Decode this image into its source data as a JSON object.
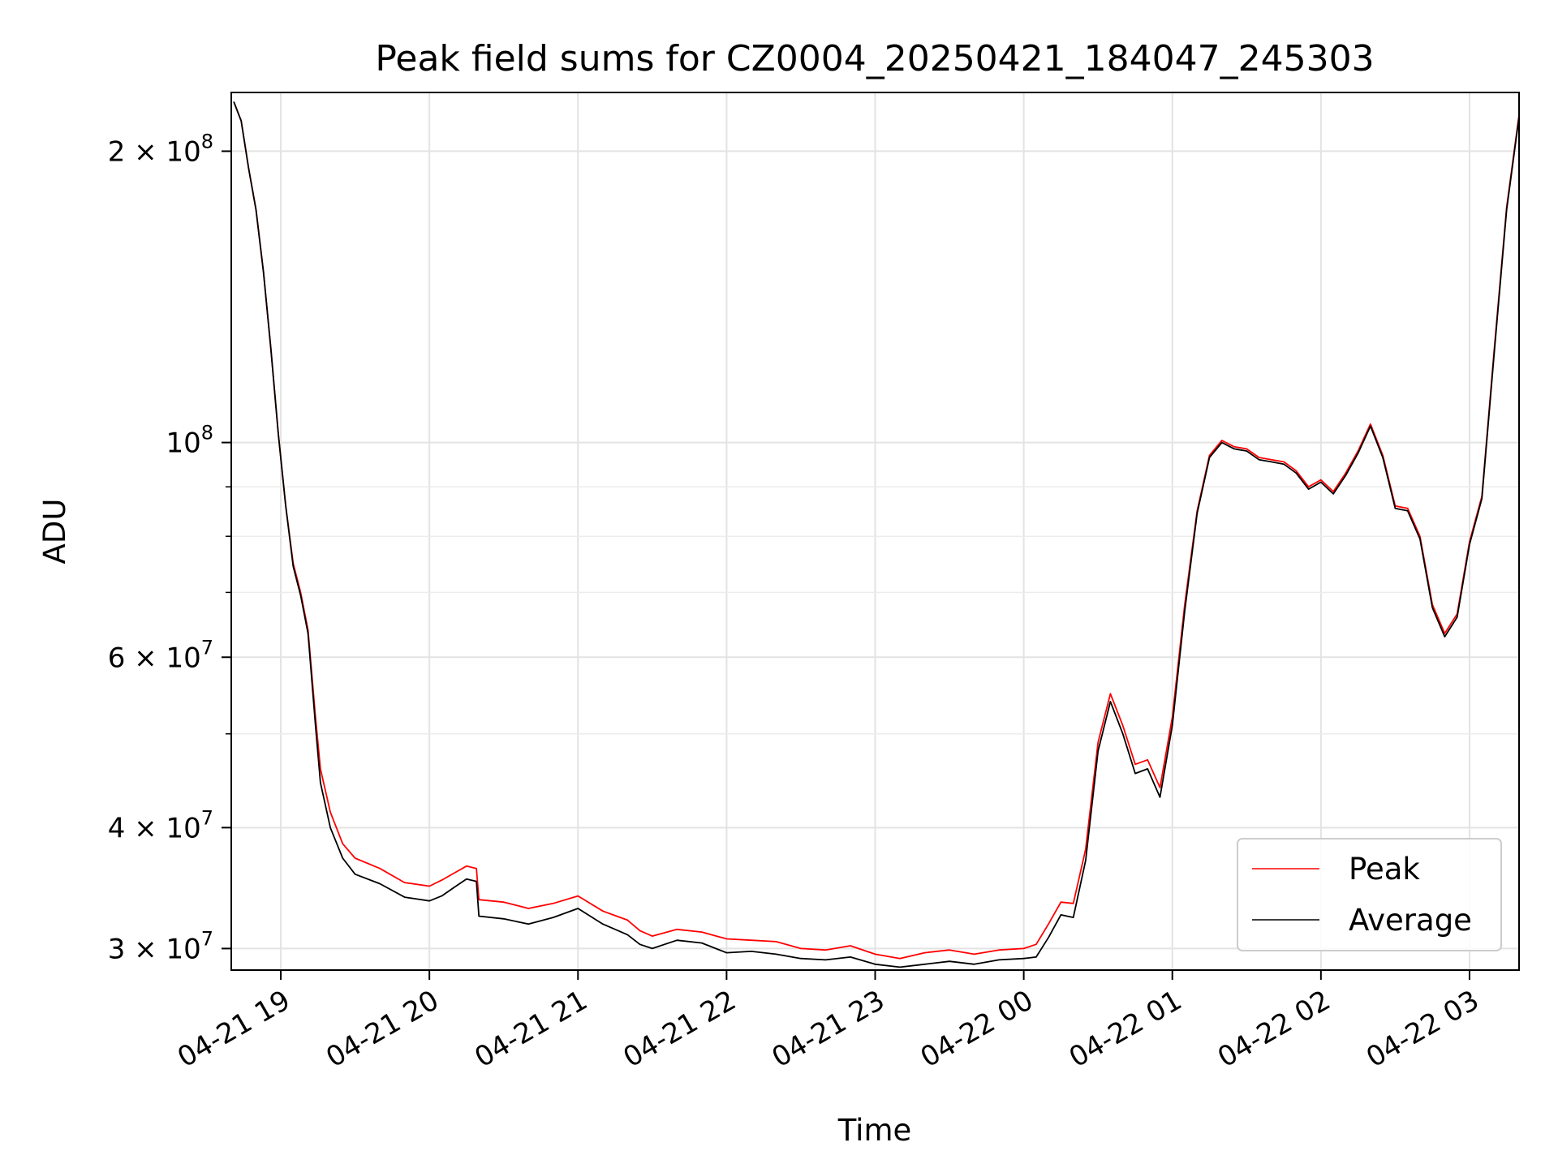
{
  "chart_data": {
    "type": "line",
    "title": "Peak field sums for CZ0004_20250421_184047_245303",
    "xlabel": "Time",
    "ylabel": "ADU",
    "yscale": "log",
    "ylim": [
      28500000,
      230000000
    ],
    "xlim": [
      "2025-04-21 18:40",
      "2025-04-22 03:20"
    ],
    "grid": true,
    "legend_position": "lower-right",
    "x_ticks": [
      {
        "t": "2025-04-21 19:00",
        "label": "04-21 19"
      },
      {
        "t": "2025-04-21 20:00",
        "label": "04-21 20"
      },
      {
        "t": "2025-04-21 21:00",
        "label": "04-21 21"
      },
      {
        "t": "2025-04-21 22:00",
        "label": "04-21 22"
      },
      {
        "t": "2025-04-21 23:00",
        "label": "04-21 23"
      },
      {
        "t": "2025-04-22 00:00",
        "label": "04-22 00"
      },
      {
        "t": "2025-04-22 01:00",
        "label": "04-22 01"
      },
      {
        "t": "2025-04-22 02:00",
        "label": "04-22 02"
      },
      {
        "t": "2025-04-22 03:00",
        "label": "04-22 03"
      }
    ],
    "y_ticks": [
      {
        "value": 30000000,
        "mantissa": "3",
        "exp": "7"
      },
      {
        "value": 40000000,
        "mantissa": "4",
        "exp": "7"
      },
      {
        "value": 60000000,
        "mantissa": "6",
        "exp": "7"
      },
      {
        "value": 100000000,
        "mantissa": "",
        "exp": "8"
      },
      {
        "value": 200000000,
        "mantissa": "2",
        "exp": "8"
      }
    ],
    "y_minor_ticks": [
      50000000,
      70000000,
      80000000,
      90000000
    ],
    "times_b": "×",
    "series": [
      {
        "name": "Peak",
        "color": "#ff0000",
        "points": [
          [
            "2025-04-21 18:41",
            225000000
          ],
          [
            "2025-04-21 18:44",
            215000000
          ],
          [
            "2025-04-21 18:47",
            192000000
          ],
          [
            "2025-04-21 18:50",
            174000000
          ],
          [
            "2025-04-21 18:53",
            150000000
          ],
          [
            "2025-04-21 18:56",
            125000000
          ],
          [
            "2025-04-21 18:59",
            102000000
          ],
          [
            "2025-04-21 19:02",
            86000000
          ],
          [
            "2025-04-21 19:05",
            75000000
          ],
          [
            "2025-04-21 19:08",
            70000000
          ],
          [
            "2025-04-21 19:11",
            64000000
          ],
          [
            "2025-04-21 19:14",
            52000000
          ],
          [
            "2025-04-21 19:16",
            46000000
          ],
          [
            "2025-04-21 19:20",
            41500000
          ],
          [
            "2025-04-21 19:25",
            38500000
          ],
          [
            "2025-04-21 19:30",
            37200000
          ],
          [
            "2025-04-21 19:40",
            36300000
          ],
          [
            "2025-04-21 19:50",
            35100000
          ],
          [
            "2025-04-21 20:00",
            34800000
          ],
          [
            "2025-04-21 20:05",
            35300000
          ],
          [
            "2025-04-21 20:10",
            35900000
          ],
          [
            "2025-04-21 20:15",
            36500000
          ],
          [
            "2025-04-21 20:19",
            36300000
          ],
          [
            "2025-04-21 20:20",
            33700000
          ],
          [
            "2025-04-21 20:30",
            33500000
          ],
          [
            "2025-04-21 20:40",
            33000000
          ],
          [
            "2025-04-21 20:50",
            33400000
          ],
          [
            "2025-04-21 21:00",
            34000000
          ],
          [
            "2025-04-21 21:10",
            32800000
          ],
          [
            "2025-04-21 21:20",
            32100000
          ],
          [
            "2025-04-21 21:25",
            31300000
          ],
          [
            "2025-04-21 21:30",
            30900000
          ],
          [
            "2025-04-21 21:40",
            31400000
          ],
          [
            "2025-04-21 21:50",
            31200000
          ],
          [
            "2025-04-21 22:00",
            30700000
          ],
          [
            "2025-04-21 22:10",
            30600000
          ],
          [
            "2025-04-21 22:20",
            30500000
          ],
          [
            "2025-04-21 22:30",
            30000000
          ],
          [
            "2025-04-21 22:40",
            29900000
          ],
          [
            "2025-04-21 22:50",
            30200000
          ],
          [
            "2025-04-21 23:00",
            29600000
          ],
          [
            "2025-04-21 23:10",
            29300000
          ],
          [
            "2025-04-21 23:20",
            29700000
          ],
          [
            "2025-04-21 23:30",
            29900000
          ],
          [
            "2025-04-21 23:40",
            29600000
          ],
          [
            "2025-04-21 23:50",
            29900000
          ],
          [
            "2025-04-22 00:00",
            30000000
          ],
          [
            "2025-04-22 00:05",
            30300000
          ],
          [
            "2025-04-22 00:10",
            31800000
          ],
          [
            "2025-04-22 00:15",
            33500000
          ],
          [
            "2025-04-22 00:20",
            33400000
          ],
          [
            "2025-04-22 00:25",
            38000000
          ],
          [
            "2025-04-22 00:30",
            49000000
          ],
          [
            "2025-04-22 00:35",
            55000000
          ],
          [
            "2025-04-22 00:40",
            51000000
          ],
          [
            "2025-04-22 00:45",
            46500000
          ],
          [
            "2025-04-22 00:50",
            47000000
          ],
          [
            "2025-04-22 00:55",
            44000000
          ],
          [
            "2025-04-22 01:00",
            52000000
          ],
          [
            "2025-04-22 01:05",
            68000000
          ],
          [
            "2025-04-22 01:10",
            85000000
          ],
          [
            "2025-04-22 01:15",
            97000000
          ],
          [
            "2025-04-22 01:20",
            100500000
          ],
          [
            "2025-04-22 01:25",
            99000000
          ],
          [
            "2025-04-22 01:30",
            98500000
          ],
          [
            "2025-04-22 01:35",
            96500000
          ],
          [
            "2025-04-22 01:40",
            96000000
          ],
          [
            "2025-04-22 01:45",
            95500000
          ],
          [
            "2025-04-22 01:50",
            93500000
          ],
          [
            "2025-04-22 01:55",
            90000000
          ],
          [
            "2025-04-22 02:00",
            91500000
          ],
          [
            "2025-04-22 02:05",
            89000000
          ],
          [
            "2025-04-22 02:10",
            93000000
          ],
          [
            "2025-04-22 02:15",
            98000000
          ],
          [
            "2025-04-22 02:20",
            104500000
          ],
          [
            "2025-04-22 02:25",
            97000000
          ],
          [
            "2025-04-22 02:30",
            86000000
          ],
          [
            "2025-04-22 02:35",
            85500000
          ],
          [
            "2025-04-22 02:40",
            80000000
          ],
          [
            "2025-04-22 02:45",
            68000000
          ],
          [
            "2025-04-22 02:50",
            63500000
          ],
          [
            "2025-04-22 02:55",
            66500000
          ],
          [
            "2025-04-22 03:00",
            79000000
          ],
          [
            "2025-04-22 03:05",
            88000000
          ],
          [
            "2025-04-22 03:10",
            125000000
          ],
          [
            "2025-04-22 03:15",
            175000000
          ],
          [
            "2025-04-22 03:20",
            218000000
          ]
        ]
      },
      {
        "name": "Average",
        "color": "#000000",
        "points": [
          [
            "2025-04-21 18:41",
            225000000
          ],
          [
            "2025-04-21 18:44",
            215000000
          ],
          [
            "2025-04-21 18:47",
            192000000
          ],
          [
            "2025-04-21 18:50",
            174000000
          ],
          [
            "2025-04-21 18:53",
            150000000
          ],
          [
            "2025-04-21 18:56",
            125000000
          ],
          [
            "2025-04-21 18:59",
            102000000
          ],
          [
            "2025-04-21 19:02",
            86000000
          ],
          [
            "2025-04-21 19:05",
            74500000
          ],
          [
            "2025-04-21 19:08",
            69500000
          ],
          [
            "2025-04-21 19:11",
            63500000
          ],
          [
            "2025-04-21 19:14",
            51000000
          ],
          [
            "2025-04-21 19:16",
            44500000
          ],
          [
            "2025-04-21 19:20",
            40000000
          ],
          [
            "2025-04-21 19:25",
            37200000
          ],
          [
            "2025-04-21 19:30",
            35800000
          ],
          [
            "2025-04-21 19:40",
            35000000
          ],
          [
            "2025-04-21 19:50",
            33900000
          ],
          [
            "2025-04-21 20:00",
            33600000
          ],
          [
            "2025-04-21 20:05",
            34000000
          ],
          [
            "2025-04-21 20:10",
            34700000
          ],
          [
            "2025-04-21 20:15",
            35400000
          ],
          [
            "2025-04-21 20:19",
            35200000
          ],
          [
            "2025-04-21 20:20",
            32400000
          ],
          [
            "2025-04-21 20:30",
            32200000
          ],
          [
            "2025-04-21 20:40",
            31800000
          ],
          [
            "2025-04-21 20:50",
            32300000
          ],
          [
            "2025-04-21 21:00",
            33000000
          ],
          [
            "2025-04-21 21:10",
            31800000
          ],
          [
            "2025-04-21 21:20",
            31000000
          ],
          [
            "2025-04-21 21:25",
            30300000
          ],
          [
            "2025-04-21 21:30",
            30000000
          ],
          [
            "2025-04-21 21:40",
            30600000
          ],
          [
            "2025-04-21 21:50",
            30400000
          ],
          [
            "2025-04-21 22:00",
            29700000
          ],
          [
            "2025-04-21 22:10",
            29800000
          ],
          [
            "2025-04-21 22:20",
            29600000
          ],
          [
            "2025-04-21 22:30",
            29300000
          ],
          [
            "2025-04-21 22:40",
            29200000
          ],
          [
            "2025-04-21 22:50",
            29400000
          ],
          [
            "2025-04-21 23:00",
            28900000
          ],
          [
            "2025-04-21 23:10",
            28700000
          ],
          [
            "2025-04-21 23:20",
            28900000
          ],
          [
            "2025-04-21 23:30",
            29100000
          ],
          [
            "2025-04-21 23:40",
            28900000
          ],
          [
            "2025-04-21 23:50",
            29200000
          ],
          [
            "2025-04-22 00:00",
            29300000
          ],
          [
            "2025-04-22 00:05",
            29400000
          ],
          [
            "2025-04-22 00:10",
            30800000
          ],
          [
            "2025-04-22 00:15",
            32500000
          ],
          [
            "2025-04-22 00:20",
            32300000
          ],
          [
            "2025-04-22 00:25",
            37000000
          ],
          [
            "2025-04-22 00:30",
            48000000
          ],
          [
            "2025-04-22 00:35",
            54000000
          ],
          [
            "2025-04-22 00:40",
            50000000
          ],
          [
            "2025-04-22 00:45",
            45500000
          ],
          [
            "2025-04-22 00:50",
            46000000
          ],
          [
            "2025-04-22 00:55",
            43000000
          ],
          [
            "2025-04-22 01:00",
            51000000
          ],
          [
            "2025-04-22 01:05",
            67000000
          ],
          [
            "2025-04-22 01:10",
            84500000
          ],
          [
            "2025-04-22 01:15",
            96500000
          ],
          [
            "2025-04-22 01:20",
            100000000
          ],
          [
            "2025-04-22 01:25",
            98500000
          ],
          [
            "2025-04-22 01:30",
            98000000
          ],
          [
            "2025-04-22 01:35",
            96000000
          ],
          [
            "2025-04-22 01:40",
            95500000
          ],
          [
            "2025-04-22 01:45",
            95000000
          ],
          [
            "2025-04-22 01:50",
            93000000
          ],
          [
            "2025-04-22 01:55",
            89500000
          ],
          [
            "2025-04-22 02:00",
            91000000
          ],
          [
            "2025-04-22 02:05",
            88500000
          ],
          [
            "2025-04-22 02:10",
            92500000
          ],
          [
            "2025-04-22 02:15",
            97500000
          ],
          [
            "2025-04-22 02:20",
            104000000
          ],
          [
            "2025-04-22 02:25",
            96500000
          ],
          [
            "2025-04-22 02:30",
            85500000
          ],
          [
            "2025-04-22 02:35",
            85000000
          ],
          [
            "2025-04-22 02:40",
            79500000
          ],
          [
            "2025-04-22 02:45",
            67500000
          ],
          [
            "2025-04-22 02:50",
            63000000
          ],
          [
            "2025-04-22 02:55",
            66000000
          ],
          [
            "2025-04-22 03:00",
            78500000
          ],
          [
            "2025-04-22 03:05",
            87500000
          ],
          [
            "2025-04-22 03:10",
            124000000
          ],
          [
            "2025-04-22 03:15",
            174000000
          ],
          [
            "2025-04-22 03:20",
            217000000
          ]
        ]
      }
    ]
  }
}
